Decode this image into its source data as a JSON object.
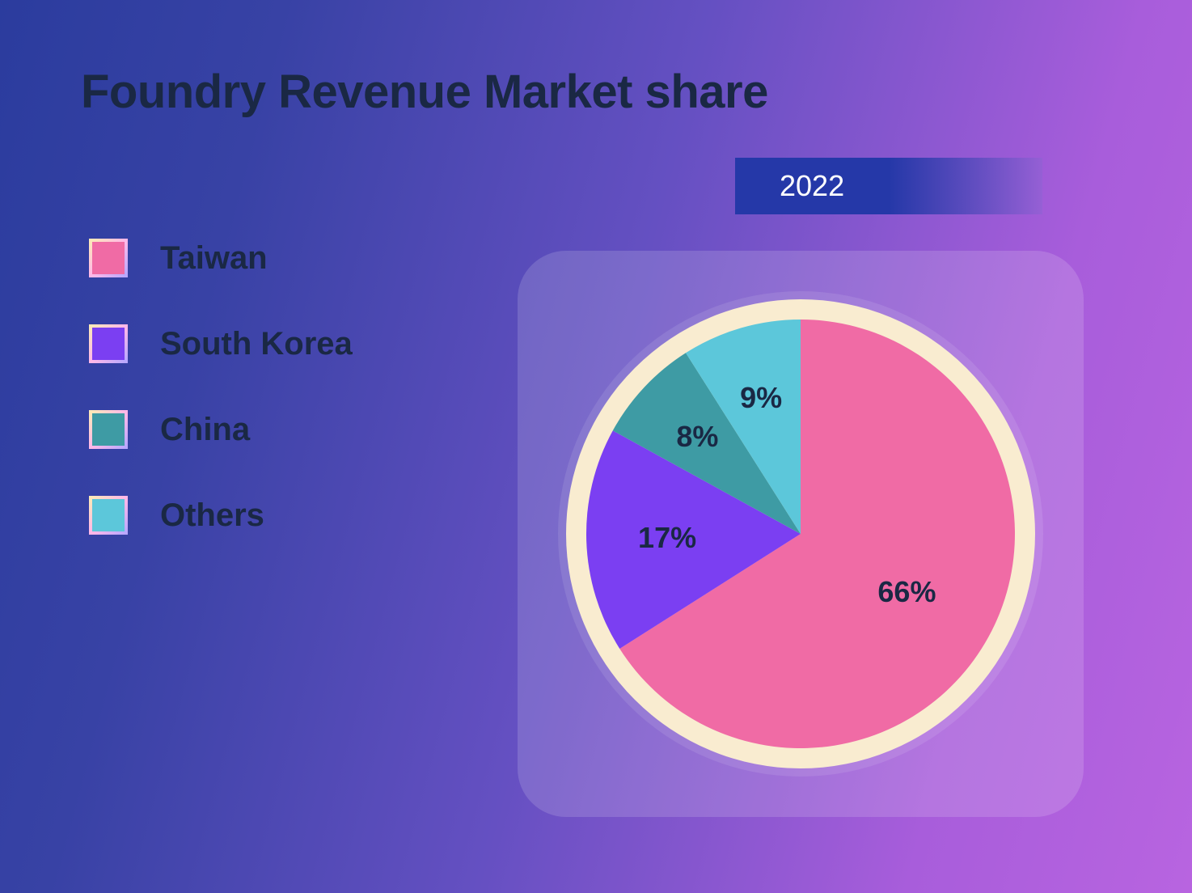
{
  "title": "Foundry Revenue Market share",
  "year": "2022",
  "background_gradient": [
    "#2b3c9e",
    "#b864e0"
  ],
  "text_color": "#1a2844",
  "year_badge": {
    "bg": "#2538a8",
    "text_color": "#ffffff"
  },
  "legend": [
    {
      "label": "Taiwan",
      "color": "#f06ba5"
    },
    {
      "label": "South Korea",
      "color": "#7b3ff2"
    },
    {
      "label": "China",
      "color": "#3e9ba4"
    },
    {
      "label": "Others",
      "color": "#5cc7da"
    }
  ],
  "pie": {
    "type": "pie",
    "ring_outer_color": "#f9ecd0",
    "ring_outer_radius": 290,
    "pie_radius": 265,
    "halo_color": "rgba(255,255,255,0.1)",
    "halo_radius": 300,
    "start_angle_deg": -90,
    "label_fontsize": 36,
    "label_color": "#1a2844",
    "slices": [
      {
        "name": "Taiwan",
        "value": 66,
        "label": "66%",
        "color": "#f06ba5",
        "label_r": 150,
        "label_angle_offset": 0
      },
      {
        "name": "South Korea",
        "value": 17,
        "label": "17%",
        "color": "#7b3ff2",
        "label_r": 165,
        "label_angle_offset": 0
      },
      {
        "name": "China",
        "value": 8,
        "label": "8%",
        "color": "#3e9ba4",
        "label_r": 175,
        "label_angle_offset": 0
      },
      {
        "name": "Others",
        "value": 9,
        "label": "9%",
        "color": "#5cc7da",
        "label_r": 175,
        "label_angle_offset": 0
      }
    ]
  }
}
